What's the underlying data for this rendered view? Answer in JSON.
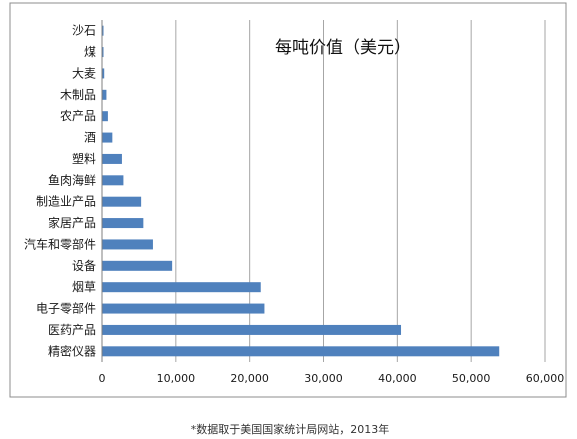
{
  "chart_data": {
    "type": "bar",
    "orientation": "horizontal",
    "title": "每吨价值（美元）",
    "categories": [
      "沙石",
      "煤",
      "大麦",
      "木制品",
      "农产品",
      "酒",
      "塑料",
      "鱼肉海鲜",
      "制造业产品",
      "家居产品",
      "汽车和零部件",
      "设备",
      "烟草",
      "电子零部件",
      "医药产品",
      "精密仪器"
    ],
    "values": [
      100,
      200,
      300,
      600,
      800,
      1400,
      2700,
      2900,
      5300,
      5600,
      6900,
      9500,
      21500,
      22000,
      40500,
      53800
    ],
    "xlim": [
      0,
      60000
    ],
    "xticks": [
      "0",
      "10,000",
      "20,000",
      "30,000",
      "40,000",
      "50,000",
      "60,000"
    ],
    "xlabel": "",
    "ylabel": "",
    "grid": true,
    "bar_color": "#4f81bd"
  },
  "footnote": "*数据取于美国国家统计局网站，2013年"
}
